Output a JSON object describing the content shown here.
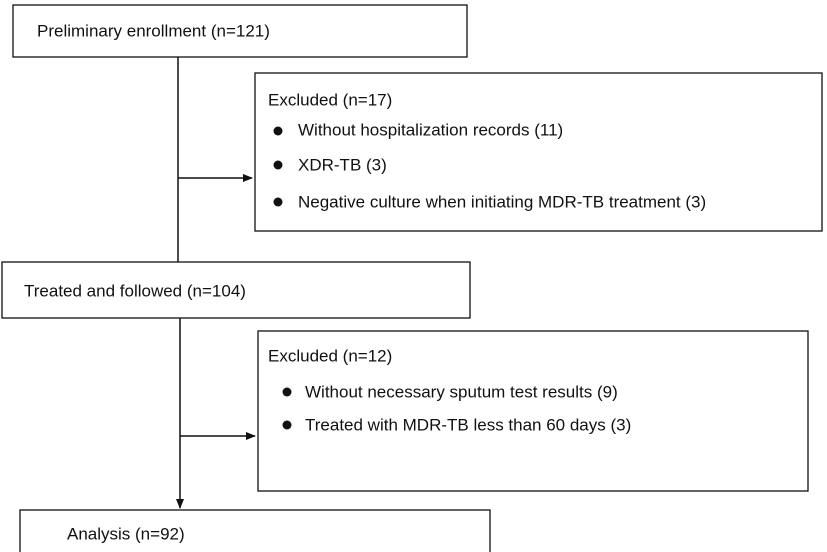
{
  "nodes": [
    {
      "label": "Preliminary enrollment (n=121)"
    },
    {
      "title": "Excluded (n=17)",
      "items": [
        "Without hospitalization records (11)",
        "XDR-TB (3)",
        "Negative culture when initiating MDR-TB treatment (3)"
      ]
    },
    {
      "label": "Treated and followed (n=104)"
    },
    {
      "title": "Excluded (n=12)",
      "items": [
        "Without necessary sputum test results (9)",
        "Treated with MDR-TB less than 60 days (3)"
      ]
    },
    {
      "label": "Analysis (n=92)"
    }
  ]
}
